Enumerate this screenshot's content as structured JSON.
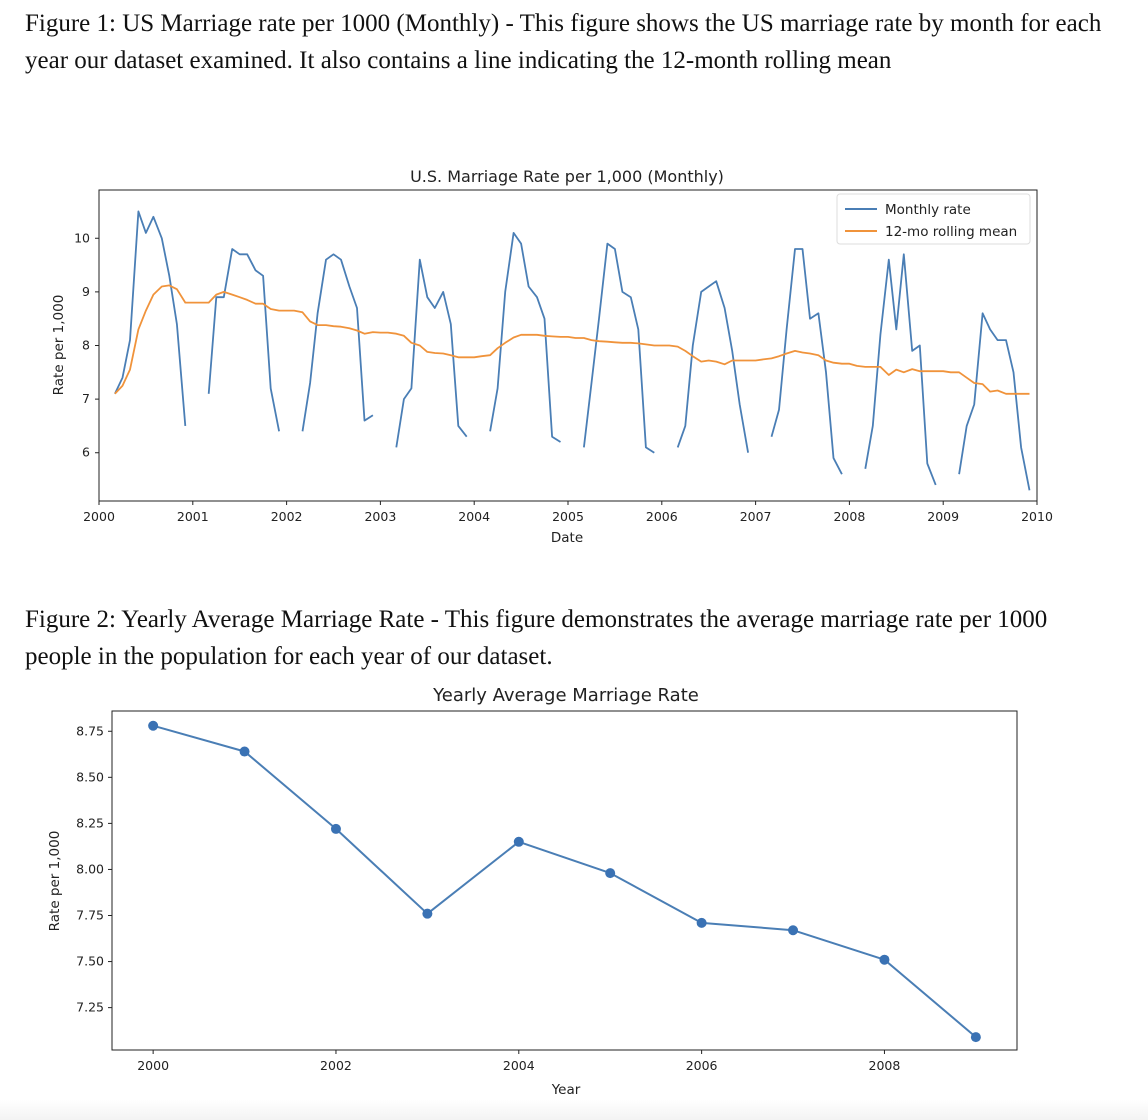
{
  "captions": {
    "figure1": "Figure 1: US Marriage rate per 1000 (Monthly) - This figure shows the US marriage rate by month for each year our dataset examined. It also contains a line indicating the 12-month rolling mean",
    "figure2": "Figure 2: Yearly Average Marriage Rate - This figure demonstrates the average marriage rate per 1000 people in the population for each year of our dataset."
  },
  "chart_data": [
    {
      "type": "line",
      "title": "U.S. Marriage Rate per 1,000 (Monthly)",
      "xlabel": "Date",
      "ylabel": "Rate per 1,000",
      "xlim": [
        2000,
        2010
      ],
      "ylim": [
        5.1,
        10.9
      ],
      "x_ticks": [
        "2000",
        "2001",
        "2002",
        "2003",
        "2004",
        "2005",
        "2006",
        "2007",
        "2008",
        "2009",
        "2010"
      ],
      "y_ticks": [
        "6",
        "7",
        "8",
        "9",
        "10"
      ],
      "grid": false,
      "legend": "top-right",
      "colors": {
        "monthly": "#4a7eb5",
        "rolling": "#f0933b"
      },
      "series": [
        {
          "name": "Monthly rate",
          "x": [
            2000.17,
            2000.25,
            2000.33,
            2000.42,
            2000.5,
            2000.58,
            2000.67,
            2000.75,
            2000.83,
            2000.92,
            null,
            2001.17,
            2001.25,
            2001.33,
            2001.42,
            2001.5,
            2001.58,
            2001.67,
            2001.75,
            2001.83,
            2001.92,
            null,
            2002.17,
            2002.25,
            2002.33,
            2002.42,
            2002.5,
            2002.58,
            2002.67,
            2002.75,
            2002.83,
            2002.92,
            null,
            2003.17,
            2003.25,
            2003.33,
            2003.42,
            2003.5,
            2003.58,
            2003.67,
            2003.75,
            2003.83,
            2003.92,
            null,
            2004.17,
            2004.25,
            2004.33,
            2004.42,
            2004.5,
            2004.58,
            2004.67,
            2004.75,
            2004.83,
            2004.92,
            null,
            2005.17,
            2005.25,
            2005.33,
            2005.42,
            2005.5,
            2005.58,
            2005.67,
            2005.75,
            2005.83,
            2005.92,
            null,
            2006.17,
            2006.25,
            2006.33,
            2006.42,
            2006.5,
            2006.58,
            2006.67,
            2006.75,
            2006.83,
            2006.92,
            null,
            2007.17,
            2007.25,
            2007.33,
            2007.42,
            2007.5,
            2007.58,
            2007.67,
            2007.75,
            2007.83,
            2007.92,
            null,
            2008.17,
            2008.25,
            2008.33,
            2008.42,
            2008.5,
            2008.58,
            2008.67,
            2008.75,
            2008.83,
            2008.92,
            null,
            2009.17,
            2009.25,
            2009.33,
            2009.42,
            2009.5,
            2009.58,
            2009.67,
            2009.75,
            2009.83,
            2009.92
          ],
          "values": [
            7.1,
            7.4,
            8.1,
            10.5,
            10.1,
            10.4,
            10.0,
            9.3,
            8.4,
            6.5,
            null,
            7.1,
            8.9,
            8.9,
            9.8,
            9.7,
            9.7,
            9.4,
            9.3,
            7.2,
            6.4,
            null,
            6.4,
            7.3,
            8.6,
            9.6,
            9.7,
            9.6,
            9.1,
            8.7,
            6.6,
            6.7,
            null,
            6.1,
            7.0,
            7.2,
            9.6,
            8.9,
            8.7,
            9.0,
            8.4,
            6.5,
            6.3,
            null,
            6.4,
            7.2,
            9.0,
            10.1,
            9.9,
            9.1,
            8.9,
            8.5,
            6.3,
            6.2,
            null,
            6.1,
            7.3,
            8.5,
            9.9,
            9.8,
            9.0,
            8.9,
            8.3,
            6.1,
            6.0,
            null,
            6.1,
            6.5,
            8.0,
            9.0,
            9.1,
            9.2,
            8.7,
            7.9,
            6.9,
            6.0,
            null,
            6.3,
            6.8,
            8.3,
            9.8,
            9.8,
            8.5,
            8.6,
            7.5,
            5.9,
            5.6,
            null,
            5.7,
            6.5,
            8.2,
            9.6,
            8.3,
            9.7,
            7.9,
            8.0,
            5.8,
            5.4,
            null,
            5.6,
            6.5,
            6.9,
            8.6,
            8.3,
            8.1,
            8.1,
            7.5,
            6.1,
            5.3
          ]
        },
        {
          "name": "12-mo rolling mean",
          "x": [
            2000.17,
            2000.25,
            2000.33,
            2000.42,
            2000.5,
            2000.58,
            2000.67,
            2000.75,
            2000.83,
            2000.92,
            2001.0,
            2001.08,
            2001.17,
            2001.25,
            2001.33,
            2001.42,
            2001.5,
            2001.58,
            2001.67,
            2001.75,
            2001.83,
            2001.92,
            2002.0,
            2002.08,
            2002.17,
            2002.25,
            2002.33,
            2002.42,
            2002.5,
            2002.58,
            2002.67,
            2002.75,
            2002.83,
            2002.92,
            2003.0,
            2003.08,
            2003.17,
            2003.25,
            2003.33,
            2003.42,
            2003.5,
            2003.58,
            2003.67,
            2003.75,
            2003.83,
            2003.92,
            2004.0,
            2004.08,
            2004.17,
            2004.25,
            2004.33,
            2004.42,
            2004.5,
            2004.58,
            2004.67,
            2004.75,
            2004.83,
            2004.92,
            2005.0,
            2005.08,
            2005.17,
            2005.25,
            2005.33,
            2005.42,
            2005.5,
            2005.58,
            2005.67,
            2005.75,
            2005.83,
            2005.92,
            2006.0,
            2006.08,
            2006.17,
            2006.25,
            2006.33,
            2006.42,
            2006.5,
            2006.58,
            2006.67,
            2006.75,
            2006.83,
            2006.92,
            2007.0,
            2007.08,
            2007.17,
            2007.25,
            2007.33,
            2007.42,
            2007.5,
            2007.58,
            2007.67,
            2007.75,
            2007.83,
            2007.92,
            2008.0,
            2008.08,
            2008.17,
            2008.25,
            2008.33,
            2008.42,
            2008.5,
            2008.58,
            2008.67,
            2008.75,
            2008.83,
            2008.92,
            2009.0,
            2009.08,
            2009.17,
            2009.25,
            2009.33,
            2009.42,
            2009.5,
            2009.58,
            2009.67,
            2009.75,
            2009.83,
            2009.92
          ],
          "values": [
            7.1,
            7.25,
            7.55,
            8.3,
            8.65,
            8.95,
            9.1,
            9.12,
            9.05,
            8.8,
            8.8,
            8.8,
            8.8,
            8.95,
            9.0,
            8.95,
            8.9,
            8.85,
            8.78,
            8.78,
            8.68,
            8.65,
            8.65,
            8.65,
            8.62,
            8.45,
            8.38,
            8.38,
            8.36,
            8.35,
            8.32,
            8.28,
            8.22,
            8.25,
            8.24,
            8.24,
            8.22,
            8.18,
            8.05,
            8.0,
            7.88,
            7.86,
            7.85,
            7.82,
            7.78,
            7.78,
            7.78,
            7.8,
            7.82,
            7.95,
            8.05,
            8.15,
            8.2,
            8.2,
            8.2,
            8.18,
            8.17,
            8.16,
            8.16,
            8.14,
            8.14,
            8.1,
            8.08,
            8.07,
            8.06,
            8.05,
            8.05,
            8.04,
            8.02,
            8.0,
            8.0,
            8.0,
            7.98,
            7.9,
            7.8,
            7.7,
            7.72,
            7.7,
            7.65,
            7.72,
            7.72,
            7.72,
            7.72,
            7.74,
            7.76,
            7.8,
            7.85,
            7.9,
            7.87,
            7.85,
            7.82,
            7.72,
            7.68,
            7.66,
            7.66,
            7.62,
            7.6,
            7.6,
            7.6,
            7.45,
            7.55,
            7.5,
            7.56,
            7.52,
            7.52,
            7.52,
            7.52,
            7.5,
            7.5,
            7.4,
            7.3,
            7.28,
            7.14,
            7.16,
            7.1,
            7.1,
            7.1,
            7.1
          ]
        }
      ]
    },
    {
      "type": "line",
      "title": "Yearly Average Marriage Rate",
      "xlabel": "Year",
      "ylabel": "Rate per 1,000",
      "xlim": [
        1999.55,
        2009.45
      ],
      "ylim": [
        7.02,
        8.86
      ],
      "x_ticks": [
        "2000",
        "2002",
        "2004",
        "2006",
        "2008"
      ],
      "y_ticks": [
        "7.25",
        "7.50",
        "7.75",
        "8.00",
        "8.25",
        "8.50",
        "8.75"
      ],
      "grid": false,
      "markers": true,
      "colors": {
        "line": "#4a7eb5",
        "marker": "#3a72b4"
      },
      "categories": [
        "2000",
        "2001",
        "2002",
        "2003",
        "2004",
        "2005",
        "2006",
        "2007",
        "2008",
        "2009"
      ],
      "values": [
        8.78,
        8.64,
        8.22,
        7.76,
        8.15,
        7.98,
        7.71,
        7.67,
        7.51,
        7.09
      ]
    }
  ]
}
